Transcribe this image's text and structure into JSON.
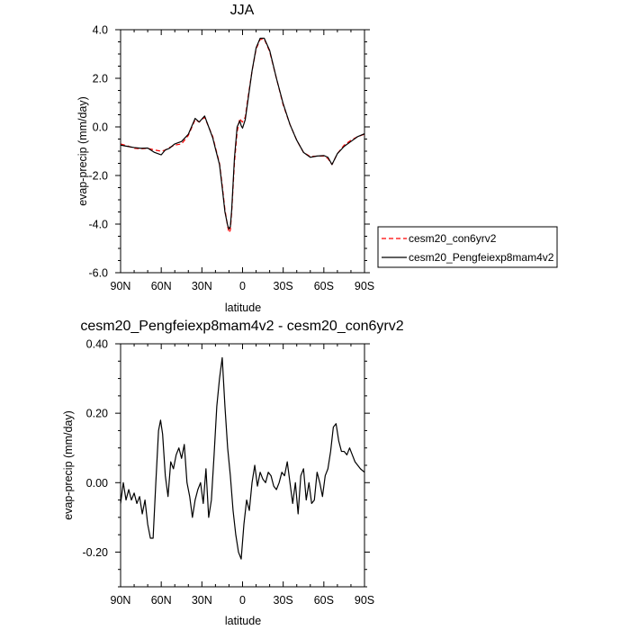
{
  "chart_data": [
    {
      "type": "line",
      "title": "JJA",
      "xlabel": "latitude",
      "ylabel": "evap-precip (mm/day)",
      "xlim": [
        90,
        -90
      ],
      "ylim": [
        -6,
        4
      ],
      "x_ticks": [
        90,
        60,
        30,
        0,
        -30,
        -60,
        -90
      ],
      "x_tick_labels": [
        "90N",
        "60N",
        "30N",
        "0",
        "30S",
        "60S",
        "90S"
      ],
      "y_ticks": [
        -6,
        -4,
        -2,
        0,
        2,
        4
      ],
      "y_tick_labels": [
        "-6.0",
        "-4.0",
        "-2.0",
        "0.0",
        "2.0",
        "4.0"
      ],
      "legend_position": "right, outside plot",
      "series": [
        {
          "name": "cesm20_con6yrv2",
          "color": "#ff0000",
          "style": "dashed",
          "x": [
            90,
            85,
            80,
            75,
            70,
            65,
            60,
            57,
            54,
            50,
            45,
            40,
            35,
            32,
            28,
            25,
            22,
            20,
            17,
            15,
            13,
            11,
            10,
            9,
            8,
            6,
            4,
            2,
            1,
            0,
            -2,
            -4,
            -7,
            -10,
            -13,
            -16,
            -20,
            -25,
            -30,
            -35,
            -40,
            -45,
            -50,
            -55,
            -60,
            -63,
            -66,
            -70,
            -75,
            -80,
            -85,
            -90
          ],
          "y": [
            -0.7,
            -0.78,
            -0.88,
            -0.9,
            -0.88,
            -0.95,
            -1.0,
            -0.95,
            -0.85,
            -0.75,
            -0.7,
            -0.35,
            0.3,
            0.2,
            0.4,
            0.0,
            -0.4,
            -0.85,
            -1.5,
            -2.4,
            -3.4,
            -4.1,
            -4.35,
            -4.25,
            -3.5,
            -1.5,
            -0.2,
            0.35,
            0.25,
            0.2,
            0.4,
            1.2,
            2.3,
            3.2,
            3.6,
            3.62,
            3.1,
            2.0,
            0.9,
            0.1,
            -0.55,
            -1.05,
            -1.22,
            -1.2,
            -1.2,
            -1.3,
            -1.55,
            -1.1,
            -0.75,
            -0.55,
            -0.4,
            -0.3
          ]
        },
        {
          "name": "cesm20_Pengfeiexp8mam4v2",
          "color": "#000000",
          "style": "solid",
          "x": [
            90,
            85,
            80,
            75,
            70,
            65,
            60,
            57,
            54,
            50,
            45,
            40,
            35,
            32,
            28,
            25,
            22,
            20,
            17,
            15,
            13,
            11,
            10,
            9,
            8,
            6,
            4,
            2,
            1,
            0,
            -2,
            -4,
            -7,
            -10,
            -13,
            -16,
            -20,
            -25,
            -30,
            -35,
            -40,
            -45,
            -50,
            -55,
            -60,
            -63,
            -66,
            -70,
            -75,
            -80,
            -85,
            -90
          ],
          "y": [
            -0.75,
            -0.8,
            -0.85,
            -0.88,
            -0.87,
            -1.05,
            -1.15,
            -0.95,
            -0.88,
            -0.7,
            -0.6,
            -0.3,
            0.35,
            0.2,
            0.45,
            0.0,
            -0.45,
            -0.9,
            -1.55,
            -2.5,
            -3.5,
            -4.05,
            -4.2,
            -4.1,
            -3.4,
            -1.3,
            0.0,
            0.25,
            0.05,
            -0.05,
            0.3,
            1.1,
            2.3,
            3.25,
            3.65,
            3.65,
            3.15,
            2.0,
            0.95,
            0.1,
            -0.55,
            -1.05,
            -1.25,
            -1.2,
            -1.18,
            -1.25,
            -1.55,
            -1.1,
            -0.8,
            -0.6,
            -0.4,
            -0.28
          ]
        }
      ]
    },
    {
      "type": "line",
      "title": "cesm20_Pengfeiexp8mam4v2 - cesm20_con6yrv2",
      "xlabel": "latitude",
      "ylabel": "evap-precip (mm/day)",
      "xlim": [
        90,
        -90
      ],
      "ylim": [
        -0.3,
        0.4
      ],
      "x_ticks": [
        90,
        60,
        30,
        0,
        -30,
        -60,
        -90
      ],
      "x_tick_labels": [
        "90N",
        "60N",
        "30N",
        "0",
        "30S",
        "60S",
        "90S"
      ],
      "y_ticks": [
        -0.2,
        0.0,
        0.2,
        0.4
      ],
      "y_tick_labels": [
        "-0.20",
        "0.00",
        "0.20",
        "0.40"
      ],
      "series": [
        {
          "color": "#000000",
          "style": "solid",
          "x": [
            90,
            88,
            86,
            84,
            82,
            80,
            78,
            76,
            74,
            72,
            70,
            68,
            66,
            64,
            62,
            60.5,
            59,
            57,
            55,
            53,
            51,
            49,
            47,
            45,
            43,
            41,
            39,
            37,
            35,
            33,
            31,
            29,
            27,
            25,
            23,
            21,
            19,
            17,
            15,
            13,
            11,
            9,
            7,
            5,
            3,
            1,
            -1,
            -3,
            -5,
            -7,
            -9,
            -11,
            -13,
            -15,
            -17,
            -19,
            -21,
            -23,
            -25,
            -27,
            -29,
            -31,
            -33,
            -35,
            -37,
            -39,
            -41,
            -43,
            -45,
            -47,
            -49,
            -51,
            -53,
            -55,
            -57,
            -59,
            -61,
            -63,
            -65,
            -67,
            -69,
            -71,
            -73,
            -75,
            -77,
            -79,
            -81,
            -83,
            -85,
            -87,
            -90
          ],
          "y": [
            -0.06,
            0.0,
            -0.05,
            -0.02,
            -0.05,
            -0.03,
            -0.06,
            -0.04,
            -0.09,
            -0.05,
            -0.12,
            -0.16,
            -0.16,
            0.0,
            0.15,
            0.18,
            0.14,
            0.02,
            -0.04,
            0.06,
            0.04,
            0.08,
            0.1,
            0.07,
            0.11,
            0.0,
            -0.04,
            -0.1,
            -0.05,
            -0.02,
            0.0,
            -0.06,
            0.04,
            -0.1,
            -0.05,
            0.08,
            0.22,
            0.3,
            0.36,
            0.22,
            0.1,
            0.02,
            -0.08,
            -0.15,
            -0.2,
            -0.22,
            -0.12,
            -0.05,
            -0.08,
            0.0,
            0.05,
            -0.01,
            0.03,
            0.01,
            0.0,
            0.03,
            0.02,
            -0.01,
            -0.02,
            0.0,
            0.03,
            0.02,
            0.06,
            0.0,
            -0.06,
            0.0,
            -0.09,
            0.02,
            0.04,
            -0.05,
            0.0,
            -0.06,
            -0.05,
            0.03,
            0.0,
            -0.04,
            0.02,
            0.04,
            0.09,
            0.16,
            0.17,
            0.12,
            0.09,
            0.09,
            0.08,
            0.1,
            0.08,
            0.06,
            0.05,
            0.04,
            0.03
          ]
        }
      ]
    }
  ],
  "legend": [
    {
      "label": "cesm20_con6yrv2",
      "color": "#ff0000",
      "style": "dashed"
    },
    {
      "label": "cesm20_Pengfeiexp8mam4v2",
      "color": "#000000",
      "style": "solid"
    }
  ]
}
